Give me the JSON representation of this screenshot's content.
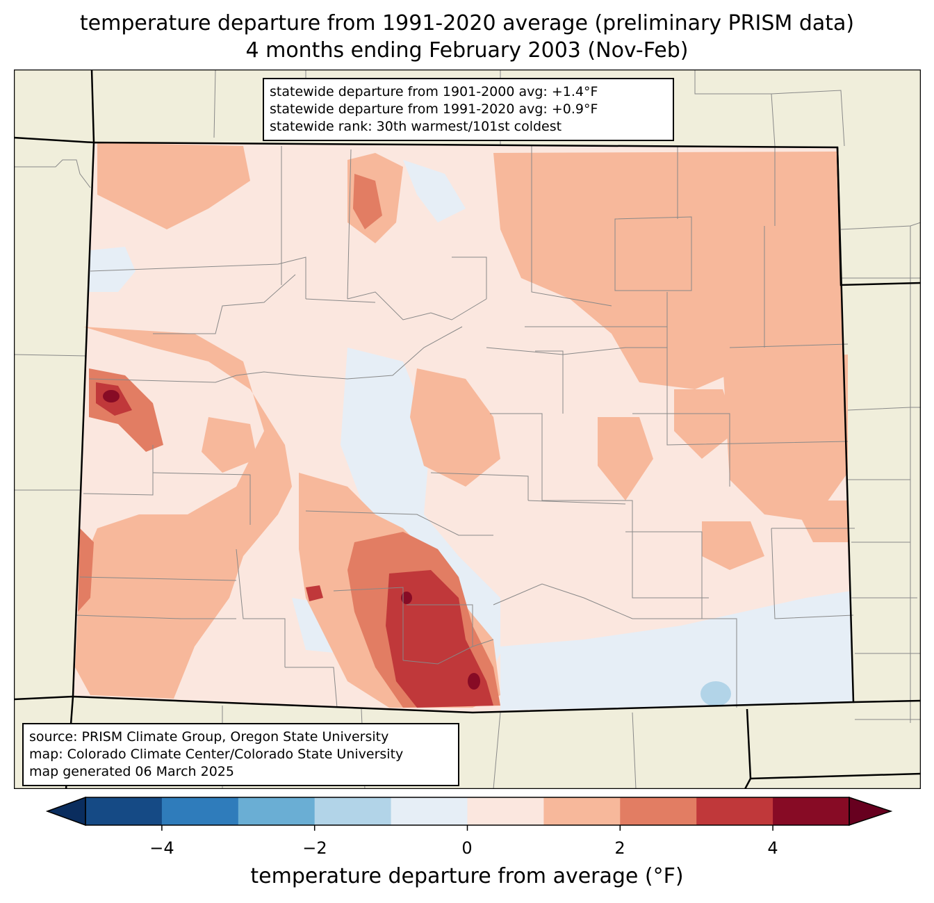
{
  "title": {
    "line1": "temperature departure from 1991-2020 average (preliminary PRISM data)",
    "line2": "4 months ending February 2003 (Nov-Feb)"
  },
  "stats": {
    "line1": "statewide departure from 1901-2000 avg: +1.4°F",
    "line2": "statewide departure from 1991-2020 avg: +0.9°F",
    "line3": "statewide rank: 30th warmest/101st coldest"
  },
  "source": {
    "line1": "source: PRISM Climate Group, Oregon State University",
    "line2": "map: Colorado Climate Center/Colorado State University",
    "line3": "map generated 06 March 2025"
  },
  "colorbar": {
    "label": "temperature departure from average (°F)",
    "ticks": [
      "−4",
      "−2",
      "0",
      "2",
      "4"
    ],
    "colors": [
      "#154a85",
      "#2f7cbb",
      "#6aaed4",
      "#b2d4e8",
      "#e6eef6",
      "#fbe7df",
      "#f7b89b",
      "#e27d63",
      "#c0383a",
      "#870b25"
    ],
    "under_color": "#0a2d5e",
    "over_color": "#67001f"
  },
  "map_colors": {
    "background": "#f0eedb",
    "neutral_warm": "#fbe7df",
    "neutral_cool": "#e6eef6"
  }
}
